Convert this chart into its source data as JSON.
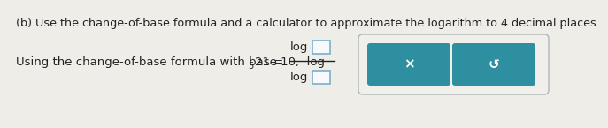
{
  "bg_color": "#eeede8",
  "title_text": "(b) Use the change-of-base formula and a calculator to approximate the logarithm to 4 decimal places.",
  "body_text_left": "Using the change-of-base formula with base 10,  log",
  "subscript": "5",
  "body_text_right": "21 =",
  "log_numerator": "log",
  "log_denominator": "log",
  "box_fill": "#f8f8ff",
  "box_border": "#7ab0c8",
  "button_color": "#2e8fa0",
  "button_x_symbol": "×",
  "button_undo_symbol": "↺",
  "text_color": "#222222",
  "button_text_color": "#ffffff",
  "container_border": "#b0b8b8",
  "container_fill": "#f0efec",
  "title_fontsize": 9.2,
  "body_fontsize": 9.5,
  "sub_fontsize": 7.0,
  "log_fontsize": 9.5,
  "btn_symbol_fontsize": 11
}
